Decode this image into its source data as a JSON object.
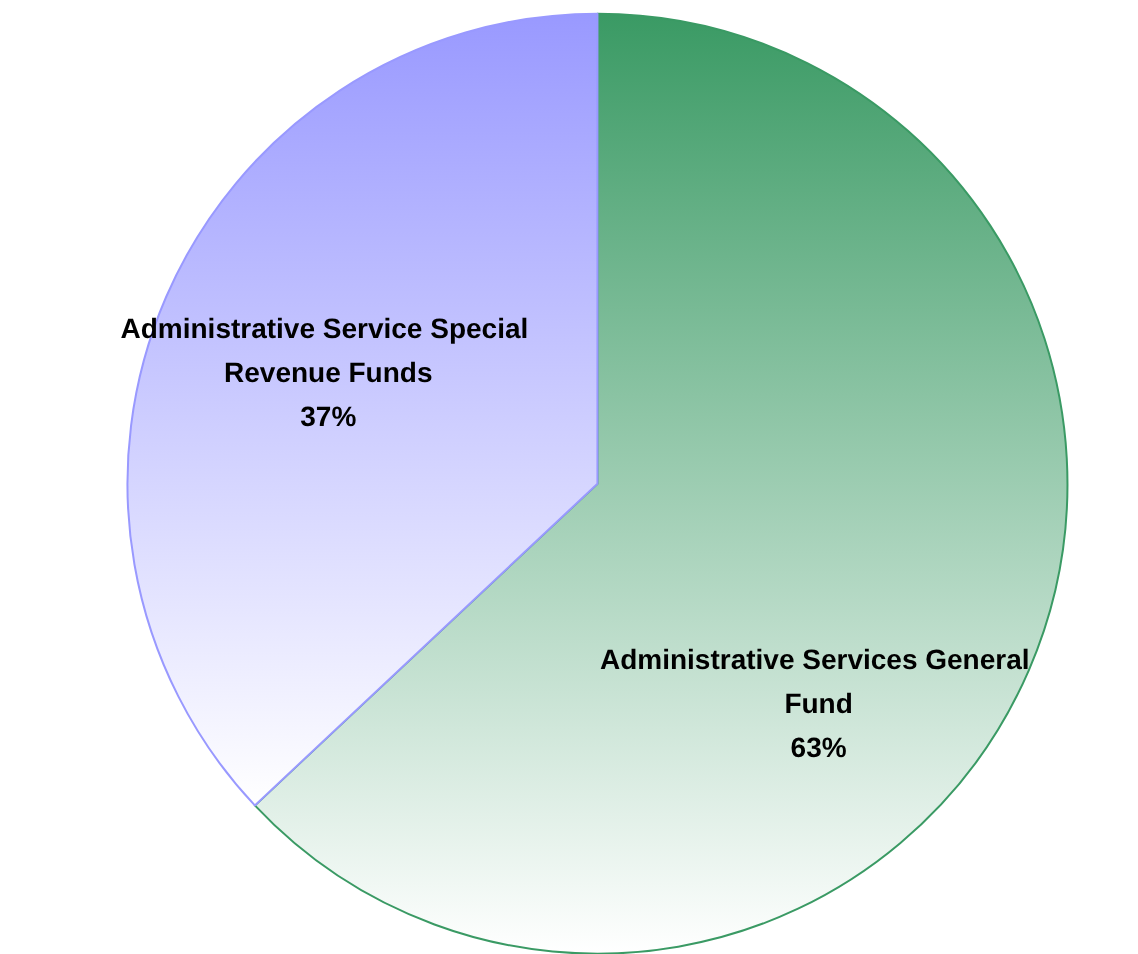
{
  "chart_data": {
    "type": "pie",
    "categories": [
      "Administrative Services General Fund",
      "Administrative Service Special Revenue Funds"
    ],
    "values": [
      63,
      37
    ],
    "colors": [
      "#3a9a64",
      "#9999ff"
    ],
    "value_labels": [
      "63%",
      "37%"
    ],
    "data_labels": true
  }
}
